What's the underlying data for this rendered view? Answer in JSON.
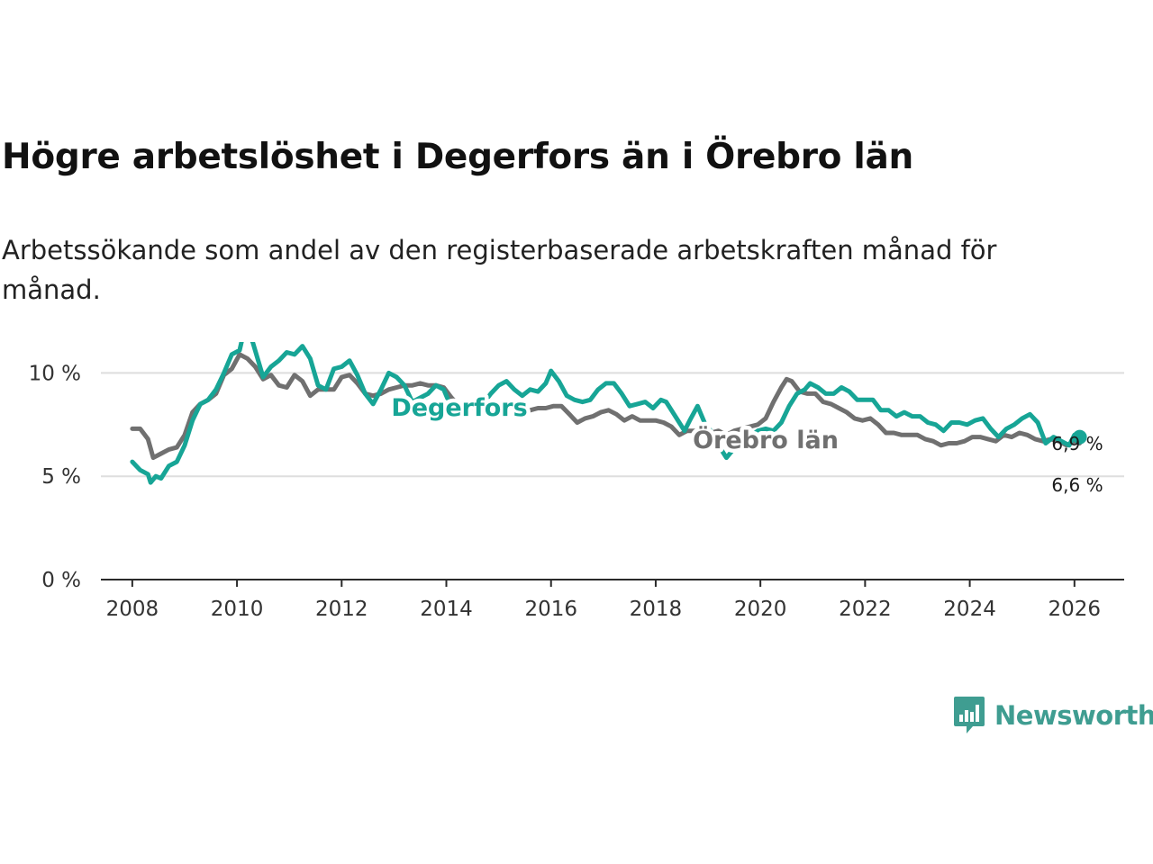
{
  "header": {
    "title": "Högre arbetslöshet i Degerfors än i Örebro län",
    "subtitle": "Arbetssökande som andel av den registerbaserade arbetskraften månad för månad."
  },
  "brand": {
    "name": "Newsworthy",
    "icon": "newsworthy-logo-icon",
    "color": "#3f9d91"
  },
  "chart_data": {
    "type": "line",
    "title": "Högre arbetslöshet i Degerfors än i Örebro län",
    "subtitle": "Arbetssökande som andel av den registerbaserade arbetskraften månad för månad.",
    "xlabel": "",
    "ylabel": "",
    "xlim": [
      2007.4,
      2026.95
    ],
    "ylim": [
      0,
      11.5
    ],
    "x_ticks": [
      "2008",
      "2010",
      "2012",
      "2014",
      "2016",
      "2018",
      "2020",
      "2022",
      "2024",
      "2026"
    ],
    "y_ticks": [
      "0 %",
      "5 %",
      "10 %"
    ],
    "grid": true,
    "series": [
      {
        "name": "Örebro län",
        "color": "#707070",
        "end_label": "6,6 %",
        "points": [
          [
            2008.0,
            7.3
          ],
          [
            2008.15,
            7.3
          ],
          [
            2008.3,
            6.8
          ],
          [
            2008.4,
            5.9
          ],
          [
            2008.55,
            6.1
          ],
          [
            2008.7,
            6.3
          ],
          [
            2008.85,
            6.4
          ],
          [
            2009.0,
            7.0
          ],
          [
            2009.15,
            8.1
          ],
          [
            2009.3,
            8.5
          ],
          [
            2009.45,
            8.7
          ],
          [
            2009.6,
            9.0
          ],
          [
            2009.75,
            9.9
          ],
          [
            2009.9,
            10.2
          ],
          [
            2010.05,
            10.9
          ],
          [
            2010.2,
            10.7
          ],
          [
            2010.35,
            10.3
          ],
          [
            2010.5,
            9.7
          ],
          [
            2010.65,
            9.9
          ],
          [
            2010.8,
            9.4
          ],
          [
            2010.95,
            9.3
          ],
          [
            2011.1,
            9.9
          ],
          [
            2011.25,
            9.6
          ],
          [
            2011.4,
            8.9
          ],
          [
            2011.55,
            9.2
          ],
          [
            2011.7,
            9.2
          ],
          [
            2011.85,
            9.2
          ],
          [
            2012.0,
            9.8
          ],
          [
            2012.15,
            9.9
          ],
          [
            2012.3,
            9.5
          ],
          [
            2012.45,
            9.0
          ],
          [
            2012.6,
            8.9
          ],
          [
            2012.75,
            9.0
          ],
          [
            2012.9,
            9.2
          ],
          [
            2013.05,
            9.3
          ],
          [
            2013.2,
            9.4
          ],
          [
            2013.35,
            9.4
          ],
          [
            2013.5,
            9.5
          ],
          [
            2013.65,
            9.4
          ],
          [
            2013.8,
            9.4
          ],
          [
            2013.95,
            9.3
          ],
          [
            2014.1,
            8.8
          ],
          [
            2014.25,
            8.4
          ],
          [
            2014.4,
            8.3
          ],
          [
            2014.55,
            8.3
          ],
          [
            2014.7,
            8.4
          ],
          [
            2014.85,
            8.5
          ],
          [
            2015.0,
            8.5
          ],
          [
            2015.15,
            8.4
          ],
          [
            2015.3,
            8.2
          ],
          [
            2015.45,
            8.0
          ],
          [
            2015.6,
            8.2
          ],
          [
            2015.75,
            8.3
          ],
          [
            2015.9,
            8.3
          ],
          [
            2016.05,
            8.4
          ],
          [
            2016.2,
            8.4
          ],
          [
            2016.35,
            8.0
          ],
          [
            2016.5,
            7.6
          ],
          [
            2016.65,
            7.8
          ],
          [
            2016.8,
            7.9
          ],
          [
            2016.95,
            8.1
          ],
          [
            2017.1,
            8.2
          ],
          [
            2017.25,
            8.0
          ],
          [
            2017.4,
            7.7
          ],
          [
            2017.55,
            7.9
          ],
          [
            2017.7,
            7.7
          ],
          [
            2017.85,
            7.7
          ],
          [
            2018.0,
            7.7
          ],
          [
            2018.15,
            7.6
          ],
          [
            2018.3,
            7.4
          ],
          [
            2018.45,
            7.0
          ],
          [
            2018.6,
            7.2
          ],
          [
            2018.75,
            7.2
          ],
          [
            2018.9,
            7.2
          ],
          [
            2019.05,
            7.1
          ],
          [
            2019.2,
            7.2
          ],
          [
            2019.35,
            7.0
          ],
          [
            2019.5,
            7.2
          ],
          [
            2019.65,
            7.3
          ],
          [
            2019.8,
            7.4
          ],
          [
            2019.95,
            7.5
          ],
          [
            2020.1,
            7.8
          ],
          [
            2020.25,
            8.6
          ],
          [
            2020.4,
            9.3
          ],
          [
            2020.5,
            9.7
          ],
          [
            2020.6,
            9.6
          ],
          [
            2020.75,
            9.1
          ],
          [
            2020.9,
            9.0
          ],
          [
            2021.05,
            9.0
          ],
          [
            2021.2,
            8.6
          ],
          [
            2021.35,
            8.5
          ],
          [
            2021.5,
            8.3
          ],
          [
            2021.65,
            8.1
          ],
          [
            2021.8,
            7.8
          ],
          [
            2021.95,
            7.7
          ],
          [
            2022.1,
            7.8
          ],
          [
            2022.25,
            7.5
          ],
          [
            2022.4,
            7.1
          ],
          [
            2022.55,
            7.1
          ],
          [
            2022.7,
            7.0
          ],
          [
            2022.85,
            7.0
          ],
          [
            2023.0,
            7.0
          ],
          [
            2023.15,
            6.8
          ],
          [
            2023.3,
            6.7
          ],
          [
            2023.45,
            6.5
          ],
          [
            2023.6,
            6.6
          ],
          [
            2023.75,
            6.6
          ],
          [
            2023.9,
            6.7
          ],
          [
            2024.05,
            6.9
          ],
          [
            2024.2,
            6.9
          ],
          [
            2024.35,
            6.8
          ],
          [
            2024.5,
            6.7
          ],
          [
            2024.65,
            7.0
          ],
          [
            2024.8,
            6.9
          ],
          [
            2024.95,
            7.1
          ],
          [
            2025.1,
            7.0
          ],
          [
            2025.25,
            6.8
          ],
          [
            2025.4,
            6.7
          ],
          [
            2025.55,
            6.8
          ],
          [
            2025.7,
            6.7
          ],
          [
            2025.85,
            6.5
          ],
          [
            2026.0,
            6.7
          ],
          [
            2026.1,
            6.6
          ]
        ]
      },
      {
        "name": "Degerfors",
        "color": "#17a596",
        "end_label": "6,9 %",
        "points": [
          [
            2008.0,
            5.7
          ],
          [
            2008.15,
            5.3
          ],
          [
            2008.3,
            5.1
          ],
          [
            2008.35,
            4.7
          ],
          [
            2008.45,
            5.0
          ],
          [
            2008.55,
            4.9
          ],
          [
            2008.7,
            5.5
          ],
          [
            2008.85,
            5.7
          ],
          [
            2009.0,
            6.5
          ],
          [
            2009.15,
            7.7
          ],
          [
            2009.3,
            8.5
          ],
          [
            2009.45,
            8.7
          ],
          [
            2009.6,
            9.2
          ],
          [
            2009.75,
            10.0
          ],
          [
            2009.9,
            10.9
          ],
          [
            2010.05,
            11.1
          ],
          [
            2010.15,
            12.2
          ],
          [
            2010.3,
            11.5
          ],
          [
            2010.5,
            9.8
          ],
          [
            2010.65,
            10.3
          ],
          [
            2010.8,
            10.6
          ],
          [
            2010.95,
            11.0
          ],
          [
            2011.1,
            10.9
          ],
          [
            2011.25,
            11.3
          ],
          [
            2011.4,
            10.7
          ],
          [
            2011.55,
            9.4
          ],
          [
            2011.7,
            9.2
          ],
          [
            2011.85,
            10.2
          ],
          [
            2012.0,
            10.3
          ],
          [
            2012.15,
            10.6
          ],
          [
            2012.3,
            9.9
          ],
          [
            2012.45,
            9.0
          ],
          [
            2012.6,
            8.5
          ],
          [
            2012.75,
            9.2
          ],
          [
            2012.9,
            10.0
          ],
          [
            2013.05,
            9.8
          ],
          [
            2013.2,
            9.4
          ],
          [
            2013.35,
            8.6
          ],
          [
            2013.5,
            8.8
          ],
          [
            2013.65,
            9.0
          ],
          [
            2013.8,
            9.4
          ],
          [
            2013.95,
            9.2
          ],
          [
            2014.1,
            8.3
          ],
          [
            2014.25,
            7.9
          ],
          [
            2014.4,
            8.2
          ],
          [
            2014.55,
            8.6
          ],
          [
            2014.7,
            8.5
          ],
          [
            2014.85,
            9.0
          ],
          [
            2015.0,
            9.4
          ],
          [
            2015.15,
            9.6
          ],
          [
            2015.3,
            9.2
          ],
          [
            2015.45,
            8.9
          ],
          [
            2015.6,
            9.2
          ],
          [
            2015.75,
            9.1
          ],
          [
            2015.9,
            9.5
          ],
          [
            2016.0,
            10.1
          ],
          [
            2016.15,
            9.6
          ],
          [
            2016.3,
            8.9
          ],
          [
            2016.45,
            8.7
          ],
          [
            2016.6,
            8.6
          ],
          [
            2016.75,
            8.7
          ],
          [
            2016.9,
            9.2
          ],
          [
            2017.05,
            9.5
          ],
          [
            2017.2,
            9.5
          ],
          [
            2017.35,
            9.0
          ],
          [
            2017.5,
            8.4
          ],
          [
            2017.65,
            8.5
          ],
          [
            2017.8,
            8.6
          ],
          [
            2017.95,
            8.3
          ],
          [
            2018.1,
            8.7
          ],
          [
            2018.2,
            8.6
          ],
          [
            2018.35,
            8.0
          ],
          [
            2018.45,
            7.6
          ],
          [
            2018.55,
            7.2
          ],
          [
            2018.65,
            7.7
          ],
          [
            2018.8,
            8.4
          ],
          [
            2018.95,
            7.5
          ],
          [
            2019.05,
            7.2
          ],
          [
            2019.2,
            6.5
          ],
          [
            2019.35,
            5.9
          ],
          [
            2019.45,
            6.2
          ],
          [
            2019.55,
            6.5
          ],
          [
            2019.65,
            6.4
          ],
          [
            2019.8,
            6.9
          ],
          [
            2019.95,
            7.2
          ],
          [
            2020.1,
            7.3
          ],
          [
            2020.25,
            7.2
          ],
          [
            2020.4,
            7.6
          ],
          [
            2020.55,
            8.4
          ],
          [
            2020.7,
            9.0
          ],
          [
            2020.85,
            9.2
          ],
          [
            2020.95,
            9.5
          ],
          [
            2021.1,
            9.3
          ],
          [
            2021.25,
            9.0
          ],
          [
            2021.4,
            9.0
          ],
          [
            2021.55,
            9.3
          ],
          [
            2021.7,
            9.1
          ],
          [
            2021.85,
            8.7
          ],
          [
            2022.0,
            8.7
          ],
          [
            2022.15,
            8.7
          ],
          [
            2022.3,
            8.2
          ],
          [
            2022.45,
            8.2
          ],
          [
            2022.6,
            7.9
          ],
          [
            2022.75,
            8.1
          ],
          [
            2022.9,
            7.9
          ],
          [
            2023.05,
            7.9
          ],
          [
            2023.2,
            7.6
          ],
          [
            2023.35,
            7.5
          ],
          [
            2023.5,
            7.2
          ],
          [
            2023.65,
            7.6
          ],
          [
            2023.8,
            7.6
          ],
          [
            2023.95,
            7.5
          ],
          [
            2024.1,
            7.7
          ],
          [
            2024.25,
            7.8
          ],
          [
            2024.4,
            7.3
          ],
          [
            2024.55,
            6.9
          ],
          [
            2024.7,
            7.3
          ],
          [
            2024.85,
            7.5
          ],
          [
            2025.0,
            7.8
          ],
          [
            2025.15,
            8.0
          ],
          [
            2025.3,
            7.6
          ],
          [
            2025.45,
            6.6
          ],
          [
            2025.6,
            6.9
          ],
          [
            2025.75,
            6.7
          ],
          [
            2025.9,
            6.5
          ],
          [
            2026.0,
            7.0
          ],
          [
            2026.1,
            6.9
          ]
        ]
      }
    ]
  }
}
